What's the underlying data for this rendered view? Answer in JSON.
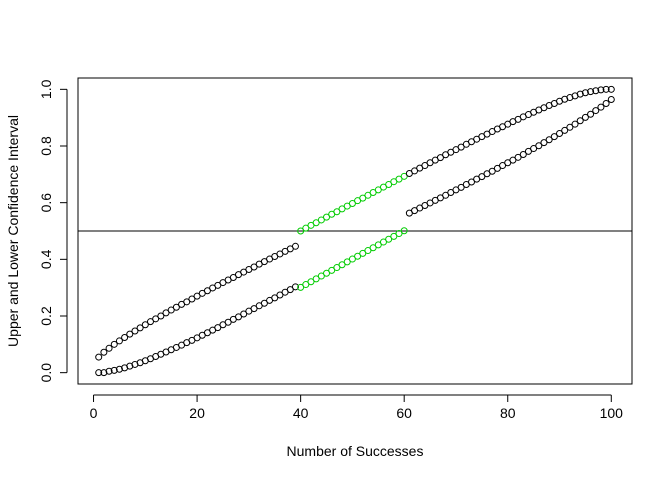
{
  "chart_data": {
    "type": "scatter",
    "title": "",
    "xlabel": "Number of Successes",
    "ylabel": "Upper and Lower Confidence Interval",
    "xlim": [
      -3.0,
      104.0
    ],
    "ylim": [
      -0.04,
      1.04
    ],
    "x_ticks": [
      0,
      20,
      40,
      60,
      80,
      100
    ],
    "x_tick_labels": [
      "0",
      "20",
      "40",
      "60",
      "80",
      "100"
    ],
    "y_ticks": [
      0.0,
      0.2,
      0.4,
      0.6,
      0.8,
      1.0
    ],
    "y_tick_labels": [
      "0.0",
      "0.2",
      "0.4",
      "0.6",
      "0.8",
      "1.0"
    ],
    "grid": false,
    "reference_line": {
      "orientation": "horizontal",
      "y": 0.5
    },
    "highlight_color": "#00cc00",
    "point_color": "#000000",
    "series": [
      {
        "x": [
          1,
          2,
          3,
          4,
          5,
          6,
          7,
          8,
          9,
          10,
          11,
          12,
          13,
          14,
          15,
          16,
          17,
          18,
          19,
          20,
          21,
          22,
          23,
          24,
          25,
          26,
          27,
          28,
          29,
          30,
          31,
          32,
          33,
          34,
          35,
          36,
          37,
          38,
          39,
          40,
          41,
          42,
          43,
          44,
          45,
          46,
          47,
          48,
          49,
          50,
          51,
          52,
          53,
          54,
          55,
          56,
          57,
          58,
          59,
          60,
          61,
          62,
          63,
          64,
          65,
          66,
          67,
          68,
          69,
          70,
          71,
          72,
          73,
          74,
          75,
          76,
          77,
          78,
          79,
          80,
          81,
          82,
          83,
          84,
          85,
          86,
          87,
          88,
          89,
          90,
          91,
          92,
          93,
          94,
          95,
          96,
          97,
          98,
          99,
          100
        ],
        "values": [
          0.055,
          0.072,
          0.086,
          0.1,
          0.112,
          0.124,
          0.136,
          0.147,
          0.158,
          0.169,
          0.18,
          0.19,
          0.2,
          0.211,
          0.221,
          0.231,
          0.241,
          0.25,
          0.26,
          0.27,
          0.28,
          0.289,
          0.299,
          0.308,
          0.318,
          0.327,
          0.336,
          0.346,
          0.355,
          0.364,
          0.373,
          0.383,
          0.392,
          0.401,
          0.41,
          0.419,
          0.428,
          0.437,
          0.446,
          0.5,
          0.51,
          0.52,
          0.529,
          0.539,
          0.549,
          0.559,
          0.568,
          0.578,
          0.588,
          0.597,
          0.607,
          0.616,
          0.626,
          0.636,
          0.645,
          0.655,
          0.664,
          0.674,
          0.683,
          0.693,
          0.703,
          0.712,
          0.722,
          0.731,
          0.741,
          0.75,
          0.759,
          0.769,
          0.778,
          0.787,
          0.796,
          0.806,
          0.815,
          0.824,
          0.833,
          0.842,
          0.851,
          0.86,
          0.868,
          0.877,
          0.886,
          0.894,
          0.903,
          0.911,
          0.919,
          0.927,
          0.935,
          0.943,
          0.95,
          0.958,
          0.965,
          0.971,
          0.977,
          0.983,
          0.988,
          0.992,
          0.995,
          0.998,
          1.0,
          1.0
        ],
        "highlight_x_range": [
          40,
          60
        ]
      },
      {
        "x": [
          1,
          2,
          3,
          4,
          5,
          6,
          7,
          8,
          9,
          10,
          11,
          12,
          13,
          14,
          15,
          16,
          17,
          18,
          19,
          20,
          21,
          22,
          23,
          24,
          25,
          26,
          27,
          28,
          29,
          30,
          31,
          32,
          33,
          34,
          35,
          36,
          37,
          38,
          39,
          40,
          41,
          42,
          43,
          44,
          45,
          46,
          47,
          48,
          49,
          50,
          51,
          52,
          53,
          54,
          55,
          56,
          57,
          58,
          59,
          60,
          61,
          62,
          63,
          64,
          65,
          66,
          67,
          68,
          69,
          70,
          71,
          72,
          73,
          74,
          75,
          76,
          77,
          78,
          79,
          80,
          81,
          82,
          83,
          84,
          85,
          86,
          87,
          88,
          89,
          90,
          91,
          92,
          93,
          94,
          95,
          96,
          97,
          98,
          99,
          100
        ],
        "values": [
          0.0,
          0.0,
          0.005,
          0.008,
          0.012,
          0.017,
          0.023,
          0.029,
          0.035,
          0.042,
          0.049,
          0.057,
          0.065,
          0.073,
          0.081,
          0.089,
          0.097,
          0.106,
          0.114,
          0.123,
          0.132,
          0.141,
          0.15,
          0.159,
          0.169,
          0.178,
          0.188,
          0.197,
          0.207,
          0.217,
          0.226,
          0.236,
          0.245,
          0.255,
          0.264,
          0.274,
          0.284,
          0.293,
          0.303,
          0.301,
          0.311,
          0.321,
          0.331,
          0.341,
          0.351,
          0.361,
          0.371,
          0.381,
          0.391,
          0.401,
          0.411,
          0.421,
          0.431,
          0.441,
          0.451,
          0.461,
          0.471,
          0.481,
          0.491,
          0.501,
          0.563,
          0.572,
          0.581,
          0.59,
          0.599,
          0.608,
          0.617,
          0.626,
          0.636,
          0.645,
          0.654,
          0.664,
          0.673,
          0.683,
          0.692,
          0.702,
          0.711,
          0.721,
          0.731,
          0.741,
          0.75,
          0.76,
          0.77,
          0.781,
          0.791,
          0.801,
          0.812,
          0.822,
          0.833,
          0.844,
          0.855,
          0.866,
          0.877,
          0.889,
          0.901,
          0.912,
          0.925,
          0.937,
          0.95,
          0.964
        ],
        "highlight_x_range": [
          40,
          60
        ]
      }
    ]
  }
}
